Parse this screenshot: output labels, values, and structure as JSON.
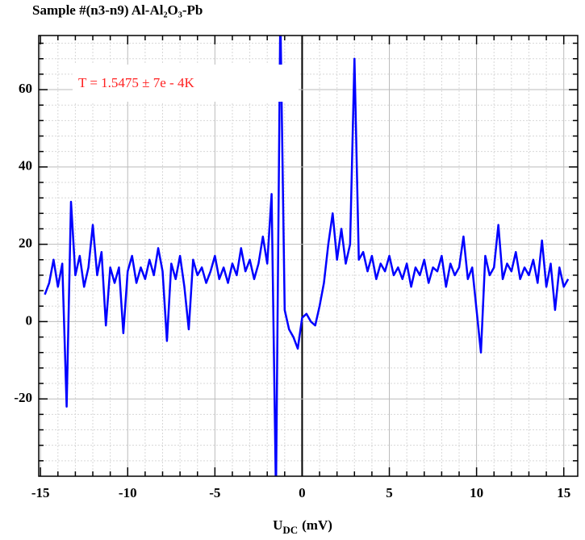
{
  "chart_data": {
    "type": "line",
    "title": "Sample #(n3-n9) Al-Al₂O₃-Pb",
    "xlabel": {
      "main": "U",
      "sub": "DC",
      "unit": "(mV)"
    },
    "annotation": "T = 1.5475 ± 7e - 4K",
    "annotation_color": "#ff2020",
    "x": [
      -14.75,
      -14.5,
      -14.25,
      -14,
      -13.75,
      -13.5,
      -13.25,
      -13,
      -12.75,
      -12.5,
      -12.25,
      -12,
      -11.75,
      -11.5,
      -11.25,
      -11,
      -10.75,
      -10.5,
      -10.25,
      -10,
      -9.75,
      -9.5,
      -9.25,
      -9,
      -8.75,
      -8.5,
      -8.25,
      -8,
      -7.75,
      -7.5,
      -7.25,
      -7,
      -6.75,
      -6.5,
      -6.25,
      -6,
      -5.75,
      -5.5,
      -5.25,
      -5,
      -4.75,
      -4.5,
      -4.25,
      -4,
      -3.75,
      -3.5,
      -3.25,
      -3,
      -2.75,
      -2.5,
      -2.25,
      -2,
      -1.75,
      -1.5,
      -1.25,
      -1,
      -0.75,
      -0.5,
      -0.25,
      0,
      0.25,
      0.5,
      0.75,
      1,
      1.25,
      1.5,
      1.75,
      2,
      2.25,
      2.5,
      2.75,
      3,
      3.25,
      3.5,
      3.75,
      4,
      4.25,
      4.5,
      4.75,
      5,
      5.25,
      5.5,
      5.75,
      6,
      6.25,
      6.5,
      6.75,
      7,
      7.25,
      7.5,
      7.75,
      8,
      8.25,
      8.5,
      8.75,
      9,
      9.25,
      9.5,
      9.75,
      10,
      10.25,
      10.5,
      10.75,
      11,
      11.25,
      11.5,
      11.75,
      12,
      12.25,
      12.5,
      12.75,
      13,
      13.25,
      13.5,
      13.75,
      14,
      14.25,
      14.5,
      14.75,
      15,
      15.25
    ],
    "series": [
      {
        "color": "#0000ff",
        "values": [
          7,
          10,
          16,
          9,
          15,
          -22,
          31,
          12,
          17,
          9,
          14,
          25,
          12,
          18,
          -1,
          14,
          10,
          14,
          -3,
          13,
          17,
          10,
          14,
          11,
          16,
          12,
          19,
          13,
          -5,
          15,
          11,
          17,
          9,
          -2,
          16,
          12,
          14,
          10,
          13,
          17,
          11,
          14,
          10,
          15,
          12,
          19,
          13,
          16,
          11,
          15,
          22,
          15,
          33,
          -45,
          80,
          3,
          -2,
          -4,
          -7,
          1,
          2,
          0,
          -1,
          4,
          10,
          20,
          28,
          16,
          24,
          15,
          20,
          68,
          16,
          18,
          13,
          17,
          11,
          15,
          13,
          17,
          12,
          14,
          11,
          15,
          9,
          14,
          12,
          16,
          10,
          14,
          13,
          17,
          9,
          15,
          12,
          14,
          22,
          11,
          14,
          3,
          -8,
          17,
          12,
          14,
          25,
          11,
          15,
          13,
          18,
          11,
          14,
          12,
          16,
          10,
          21,
          9,
          15,
          3,
          14,
          9,
          11
        ]
      }
    ],
    "xlim": [
      -15.1,
      15.8
    ],
    "ylim": [
      -40,
      74
    ],
    "xticks": [
      -15,
      -10,
      -5,
      0,
      5,
      10,
      15
    ],
    "yticks": [
      -20,
      0,
      20,
      40,
      60
    ],
    "xminorticks": [
      -14,
      -13,
      -12,
      -11,
      -9,
      -8,
      -7,
      -6,
      -4,
      -3,
      -2,
      -1,
      1,
      2,
      3,
      4,
      6,
      7,
      8,
      9,
      11,
      12,
      13,
      14
    ],
    "yminorticks": [
      -36,
      -32,
      -28,
      -24,
      -16,
      -12,
      -8,
      -4,
      4,
      8,
      12,
      16,
      24,
      28,
      32,
      36,
      44,
      48,
      52,
      56,
      64,
      68,
      72
    ],
    "grid": true
  }
}
